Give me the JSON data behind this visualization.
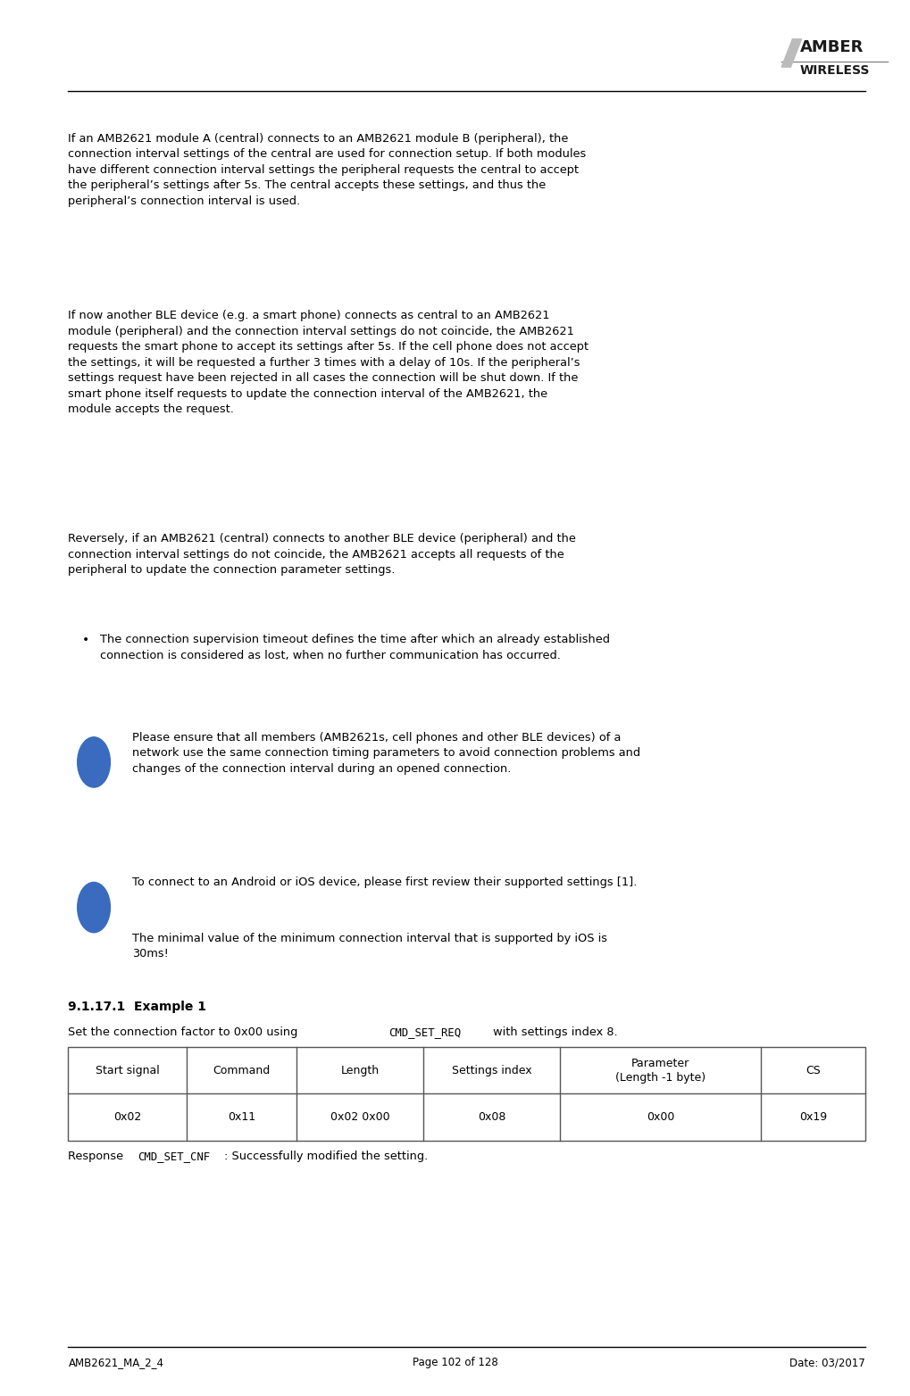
{
  "page_width": 10.2,
  "page_height": 15.64,
  "bg_color": "#ffffff",
  "logo_text_top": "AMBER",
  "logo_text_bottom": "WIRELESS",
  "footer_left": "AMB2621_MA_2_4",
  "footer_center": "Page 102 of 128",
  "footer_right": "Date: 03/2017",
  "para1": "If an AMB2621 module A (central) connects to an AMB2621 module B (peripheral), the\nconnection interval settings of the central are used for connection setup. If both modules\nhave different connection interval settings the peripheral requests the central to accept\nthe peripheral’s settings after 5s. The central accepts these settings, and thus the\nperipheral’s connection interval is used.",
  "para2": "If now another BLE device (e.g. a smart phone) connects as central to an AMB2621\nmodule (peripheral) and the connection interval settings do not coincide, the AMB2621\nrequests the smart phone to accept its settings after 5s. If the cell phone does not accept\nthe settings, it will be requested a further 3 times with a delay of 10s. If the peripheral’s\nsettings request have been rejected in all cases the connection will be shut down. If the\nsmart phone itself requests to update the connection interval of the AMB2621, the\nmodule accepts the request.",
  "para3": "Reversely, if an AMB2621 (central) connects to another BLE device (peripheral) and the\nconnection interval settings do not coincide, the AMB2621 accepts all requests of the\nperipheral to update the connection parameter settings.",
  "bullet1": "The connection supervision timeout defines the time after which an already established\nconnection is considered as lost, when no further communication has occurred.",
  "info1": "Please ensure that all members (AMB2621s, cell phones and other BLE devices) of a\nnetwork use the same connection timing parameters to avoid connection problems and\nchanges of the connection interval during an opened connection.",
  "info2_line1": "To connect to an Android or iOS device, please first review their supported settings [1].",
  "info2_line2": "The minimal value of the minimum connection interval that is supported by iOS is\n30ms!",
  "section_title": "9.1.17.1  Example 1",
  "section_intro": "Set the connection factor to 0x00 using",
  "section_intro_code": "CMD_SET_REQ",
  "section_intro_end": "with settings index 8.",
  "table_headers": [
    "Start signal",
    "Command",
    "Length",
    "Settings index",
    "Parameter\n(Length -1 byte)",
    "CS"
  ],
  "table_row": [
    "0x02",
    "0x11",
    "0x02 0x00",
    "0x08",
    "0x00",
    "0x19"
  ],
  "response_text": "Response",
  "response_code": "CMD_SET_CNF",
  "response_end": ": Successfully modified the setting.",
  "text_color": "#000000",
  "table_border_color": "#555555",
  "logo_slash_color": "#aaaaaa"
}
